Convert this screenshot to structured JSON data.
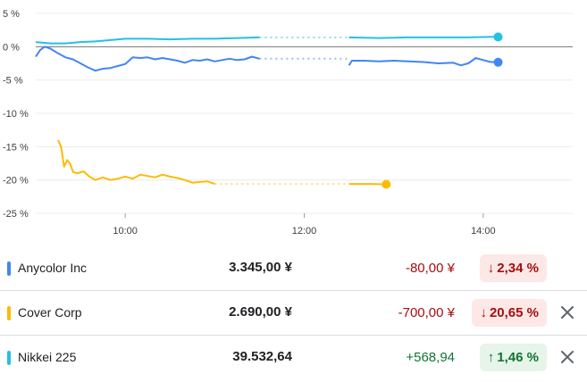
{
  "chart_data": {
    "type": "line",
    "ylim": [
      -25,
      5
    ],
    "yticks": [
      5,
      0,
      -5,
      -10,
      -15,
      -20,
      -25
    ],
    "ytick_labels": [
      "5 %",
      "0 %",
      "-5 %",
      "-10 %",
      "-15 %",
      "-20 %",
      "-25 %"
    ],
    "xlim": [
      "09:00",
      "15:00"
    ],
    "xticks": [
      "10:00",
      "12:00",
      "14:00"
    ],
    "series": [
      {
        "name": "Nikkei 225",
        "color": "#24c1e0",
        "segments": [
          [
            [
              "09:00",
              0.7
            ],
            [
              "09:10",
              0.5
            ],
            [
              "09:20",
              0.5
            ],
            [
              "09:30",
              0.7
            ],
            [
              "09:40",
              0.8
            ],
            [
              "09:50",
              1.0
            ],
            [
              "10:00",
              1.2
            ],
            [
              "10:15",
              1.2
            ],
            [
              "10:30",
              1.1
            ],
            [
              "10:45",
              1.2
            ],
            [
              "11:00",
              1.2
            ],
            [
              "11:15",
              1.3
            ],
            [
              "11:30",
              1.4
            ]
          ],
          [
            [
              "12:30",
              1.4
            ],
            [
              "12:50",
              1.3
            ],
            [
              "13:10",
              1.4
            ],
            [
              "13:30",
              1.4
            ],
            [
              "13:50",
              1.4
            ],
            [
              "14:10",
              1.5
            ]
          ]
        ],
        "gap": [
          [
            "11:30",
            1.4
          ],
          [
            "12:30",
            1.4
          ]
        ],
        "end": [
          "14:10",
          1.46
        ]
      },
      {
        "name": "Anycolor Inc",
        "color": "#4285f4",
        "segments": [
          [
            [
              "09:00",
              -1.5
            ],
            [
              "09:03",
              -0.5
            ],
            [
              "09:06",
              0.0
            ],
            [
              "09:10",
              -0.3
            ],
            [
              "09:15",
              -1.0
            ],
            [
              "09:20",
              -1.6
            ],
            [
              "09:25",
              -1.9
            ],
            [
              "09:30",
              -2.5
            ],
            [
              "09:35",
              -3.1
            ],
            [
              "09:40",
              -3.6
            ],
            [
              "09:45",
              -3.3
            ],
            [
              "09:50",
              -3.2
            ],
            [
              "09:55",
              -2.9
            ],
            [
              "10:00",
              -2.6
            ],
            [
              "10:05",
              -1.6
            ],
            [
              "10:10",
              -1.7
            ],
            [
              "10:15",
              -1.6
            ],
            [
              "10:20",
              -1.9
            ],
            [
              "10:25",
              -1.7
            ],
            [
              "10:30",
              -1.9
            ],
            [
              "10:35",
              -2.1
            ],
            [
              "10:40",
              -2.4
            ],
            [
              "10:45",
              -2.0
            ],
            [
              "10:50",
              -2.1
            ],
            [
              "10:55",
              -1.9
            ],
            [
              "11:00",
              -2.2
            ],
            [
              "11:05",
              -2.0
            ],
            [
              "11:10",
              -1.8
            ],
            [
              "11:15",
              -2.0
            ],
            [
              "11:20",
              -1.9
            ],
            [
              "11:25",
              -1.5
            ],
            [
              "11:30",
              -1.8
            ]
          ],
          [
            [
              "12:30",
              -2.8
            ],
            [
              "12:32",
              -2.1
            ],
            [
              "12:40",
              -2.1
            ],
            [
              "12:50",
              -2.2
            ],
            [
              "13:00",
              -2.1
            ],
            [
              "13:10",
              -2.2
            ],
            [
              "13:20",
              -2.3
            ],
            [
              "13:30",
              -2.5
            ],
            [
              "13:40",
              -2.4
            ],
            [
              "13:45",
              -2.8
            ],
            [
              "13:50",
              -2.5
            ],
            [
              "13:55",
              -1.7
            ],
            [
              "14:00",
              -2.0
            ],
            [
              "14:05",
              -2.3
            ],
            [
              "14:10",
              -2.3
            ]
          ]
        ],
        "gap": [
          [
            "11:30",
            -1.8
          ],
          [
            "12:30",
            -1.8
          ]
        ],
        "end": [
          "14:10",
          -2.34
        ]
      },
      {
        "name": "Cover Corp",
        "color": "#fbbc04",
        "segments": [
          [
            [
              "09:15",
              -14.0
            ],
            [
              "09:17",
              -15.0
            ],
            [
              "09:19",
              -18.0
            ],
            [
              "09:21",
              -17.0
            ],
            [
              "09:23",
              -17.5
            ],
            [
              "09:25",
              -18.8
            ],
            [
              "09:28",
              -19.0
            ],
            [
              "09:32",
              -18.7
            ],
            [
              "09:36",
              -19.5
            ],
            [
              "09:40",
              -20.0
            ],
            [
              "09:45",
              -19.6
            ],
            [
              "09:50",
              -20.0
            ],
            [
              "09:55",
              -19.8
            ],
            [
              "10:00",
              -19.5
            ],
            [
              "10:05",
              -19.8
            ],
            [
              "10:10",
              -19.2
            ],
            [
              "10:15",
              -19.4
            ],
            [
              "10:20",
              -19.6
            ],
            [
              "10:25",
              -19.2
            ],
            [
              "10:30",
              -19.5
            ],
            [
              "10:35",
              -19.7
            ],
            [
              "10:40",
              -20.0
            ],
            [
              "10:45",
              -20.4
            ],
            [
              "10:50",
              -20.3
            ],
            [
              "10:55",
              -20.2
            ],
            [
              "11:00",
              -20.6
            ]
          ],
          [
            [
              "12:30",
              -20.6
            ],
            [
              "12:45",
              -20.6
            ],
            [
              "12:55",
              -20.65
            ]
          ]
        ],
        "gap": [
          [
            "11:00",
            -20.6
          ],
          [
            "12:30",
            -20.6
          ]
        ],
        "end": [
          "12:55",
          -20.65
        ]
      }
    ]
  },
  "rows": [
    {
      "name": "Anycolor Inc",
      "color": "#4285f4",
      "price": "3.345,00 ¥",
      "change": "-80,00 ¥",
      "pct": "2,34 %",
      "direction": "down",
      "arrow": "↓",
      "closable": false
    },
    {
      "name": "Cover Corp",
      "color": "#fbbc04",
      "price": "2.690,00 ¥",
      "change": "-700,00 ¥",
      "pct": "20,65 %",
      "direction": "down",
      "arrow": "↓",
      "closable": true
    },
    {
      "name": "Nikkei 225",
      "color": "#24c1e0",
      "price": "39.532,64",
      "change": "+568,94",
      "pct": "1,46 %",
      "direction": "up",
      "arrow": "↑",
      "closable": true
    }
  ],
  "icons": {
    "close": "close-icon"
  }
}
